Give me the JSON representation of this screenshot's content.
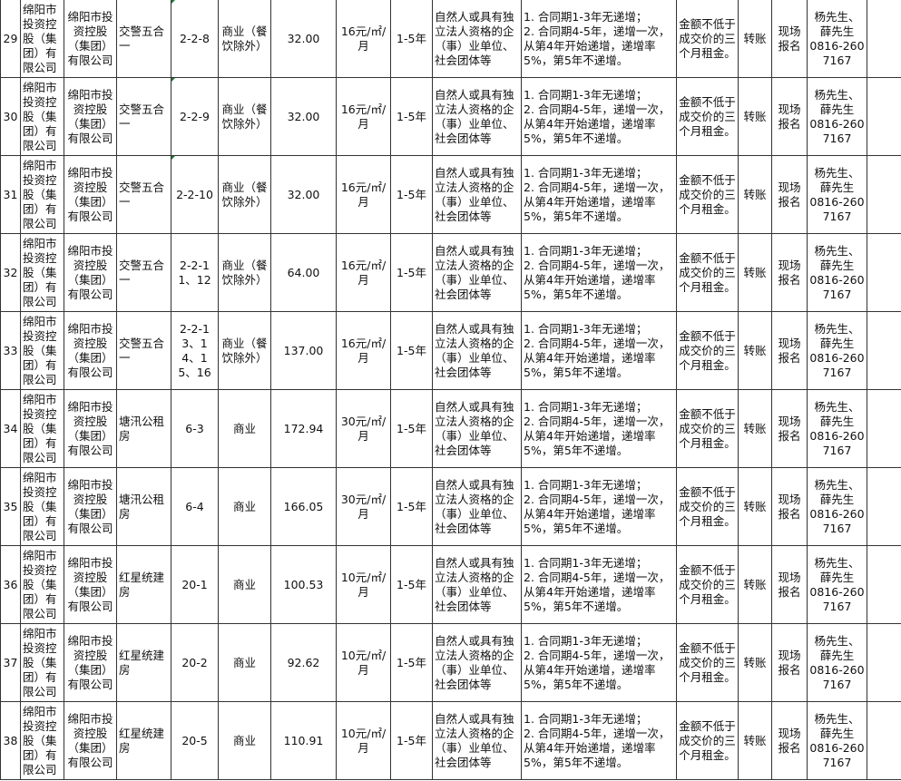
{
  "rows": [
    {
      "no": "29",
      "owner_a": "绵阳市投资控股（集团）有限公司",
      "owner_b": "绵阳市投资控股（集团）有限公司",
      "location": "交警五合一",
      "unit": "2-2-8",
      "use": "商业（餐饮除外）",
      "area": "32.00",
      "price": "16元/㎡/月",
      "term": "1-5年",
      "eligibility": "自然人或具有独立法人资格的企（事）业单位、社会团体等",
      "increase": "1. 合同期1-3年无递增；\n2. 合同期4-5年，递增一次，从第4年开始递增，递增率5%，第5年不递增。",
      "deposit": "金额不低于成交价的三个月租金。",
      "payment": "转账",
      "signup": "现场报名",
      "contact": "杨先生、薛先生\n0816-2607167",
      "extra": ""
    },
    {
      "no": "30",
      "owner_a": "绵阳市投资控股（集团）有限公司",
      "owner_b": "绵阳市投资控股（集团）有限公司",
      "location": "交警五合一",
      "unit": "2-2-9",
      "use": "商业（餐饮除外）",
      "area": "32.00",
      "price": "16元/㎡/月",
      "term": "1-5年",
      "eligibility": "自然人或具有独立法人资格的企（事）业单位、社会团体等",
      "increase": "1. 合同期1-3年无递增；\n2. 合同期4-5年，递增一次，从第4年开始递增，递增率5%，第5年不递增。",
      "deposit": "金额不低于成交价的三个月租金。",
      "payment": "转账",
      "signup": "现场报名",
      "contact": "杨先生、薛先生\n0816-2607167",
      "extra": ""
    },
    {
      "no": "31",
      "owner_a": "绵阳市投资控股（集团）有限公司",
      "owner_b": "绵阳市投资控股（集团）有限公司",
      "location": "交警五合一",
      "unit": "2-2-10",
      "use": "商业（餐饮除外）",
      "area": "32.00",
      "price": "16元/㎡/月",
      "term": "1-5年",
      "eligibility": "自然人或具有独立法人资格的企（事）业单位、社会团体等",
      "increase": "1. 合同期1-3年无递增；\n2. 合同期4-5年，递增一次，从第4年开始递增，递增率5%，第5年不递增。",
      "deposit": "金额不低于成交价的三个月租金。",
      "payment": "转账",
      "signup": "现场报名",
      "contact": "杨先生、薛先生\n0816-2607167",
      "extra": ""
    },
    {
      "no": "32",
      "owner_a": "绵阳市投资控股（集团）有限公司",
      "owner_b": "绵阳市投资控股（集团）有限公司",
      "location": "交警五合一",
      "unit": "2-2-11、12",
      "use": "商业（餐饮除外）",
      "area": "64.00",
      "price": "16元/㎡/月",
      "term": "1-5年",
      "eligibility": "自然人或具有独立法人资格的企（事）业单位、社会团体等",
      "increase": "1. 合同期1-3年无递增；\n2. 合同期4-5年，递增一次，从第4年开始递增，递增率5%，第5年不递增。",
      "deposit": "金额不低于成交价的三个月租金。",
      "payment": "转账",
      "signup": "现场报名",
      "contact": "杨先生、薛先生\n0816-2607167",
      "extra": ""
    },
    {
      "no": "33",
      "owner_a": "绵阳市投资控股（集团）有限公司",
      "owner_b": "绵阳市投资控股（集团）有限公司",
      "location": "交警五合一",
      "unit": "2-2-13、14、15、16",
      "use": "商业（餐饮除外）",
      "area": "137.00",
      "price": "16元/㎡/月",
      "term": "1-5年",
      "eligibility": "自然人或具有独立法人资格的企（事）业单位、社会团体等",
      "increase": "1. 合同期1-3年无递增；\n2. 合同期4-5年，递增一次，从第4年开始递增，递增率5%，第5年不递增。",
      "deposit": "金额不低于成交价的三个月租金。",
      "payment": "转账",
      "signup": "现场报名",
      "contact": "杨先生、薛先生\n0816-2607167",
      "extra": ""
    },
    {
      "no": "34",
      "owner_a": "绵阳市投资控股（集团）有限公司",
      "owner_b": "绵阳市投资控股（集团）有限公司",
      "location": "塘汛公租房",
      "unit": "6-3",
      "use": "商业",
      "area": "172.94",
      "price": "30元/㎡/月",
      "term": "1-5年",
      "eligibility": "自然人或具有独立法人资格的企（事）业单位、社会团体等",
      "increase": "1. 合同期1-3年无递增；\n2. 合同期4-5年，递增一次，从第4年开始递增，递增率5%，第5年不递增。",
      "deposit": "金额不低于成交价的三个月租金。",
      "payment": "转账",
      "signup": "现场报名",
      "contact": "杨先生、薛先生\n0816-2607167",
      "extra": ""
    },
    {
      "no": "35",
      "owner_a": "绵阳市投资控股（集团）有限公司",
      "owner_b": "绵阳市投资控股（集团）有限公司",
      "location": "塘汛公租房",
      "unit": "6-4",
      "use": "商业",
      "area": "166.05",
      "price": "30元/㎡/月",
      "term": "1-5年",
      "eligibility": "自然人或具有独立法人资格的企（事）业单位、社会团体等",
      "increase": "1. 合同期1-3年无递增；\n2. 合同期4-5年，递增一次，从第4年开始递增，递增率5%，第5年不递增。",
      "deposit": "金额不低于成交价的三个月租金。",
      "payment": "转账",
      "signup": "现场报名",
      "contact": "杨先生、薛先生\n0816-2607167",
      "extra": ""
    },
    {
      "no": "36",
      "owner_a": "绵阳市投资控股（集团）有限公司",
      "owner_b": "绵阳市投资控股（集团）有限公司",
      "location": "红星统建房",
      "unit": "20-1",
      "use": "商业",
      "area": "100.53",
      "price": "10元/㎡/月",
      "term": "1-5年",
      "eligibility": "自然人或具有独立法人资格的企（事）业单位、社会团体等",
      "increase": "1. 合同期1-3年无递增；\n2. 合同期4-5年，递增一次，从第4年开始递增，递增率5%，第5年不递增。",
      "deposit": "金额不低于成交价的三个月租金。",
      "payment": "转账",
      "signup": "现场报名",
      "contact": "杨先生、薛先生\n0816-2607167",
      "extra": ""
    },
    {
      "no": "37",
      "owner_a": "绵阳市投资控股（集团）有限公司",
      "owner_b": "绵阳市投资控股（集团）有限公司",
      "location": "红星统建房",
      "unit": "20-2",
      "use": "商业",
      "area": "92.62",
      "price": "10元/㎡/月",
      "term": "1-5年",
      "eligibility": "自然人或具有独立法人资格的企（事）业单位、社会团体等",
      "increase": "1. 合同期1-3年无递增；\n2. 合同期4-5年，递增一次，从第4年开始递增，递增率5%，第5年不递增。",
      "deposit": "金额不低于成交价的三个月租金。",
      "payment": "转账",
      "signup": "现场报名",
      "contact": "杨先生、薛先生\n0816-2607167",
      "extra": ""
    },
    {
      "no": "38",
      "owner_a": "绵阳市投资控股（集团）有限公司",
      "owner_b": "绵阳市投资控股（集团）有限公司",
      "location": "红星统建房",
      "unit": "20-5",
      "use": "商业",
      "area": "110.91",
      "price": "10元/㎡/月",
      "term": "1-5年",
      "eligibility": "自然人或具有独立法人资格的企（事）业单位、社会团体等",
      "increase": "1. 合同期1-3年无递增；\n2. 合同期4-5年，递增一次，从第4年开始递增，递增率5%，第5年不递增。",
      "deposit": "金额不低于成交价的三个月租金。",
      "payment": "转账",
      "signup": "现场报名",
      "contact": "杨先生、薛先生\n0816-2607167",
      "extra": ""
    }
  ]
}
